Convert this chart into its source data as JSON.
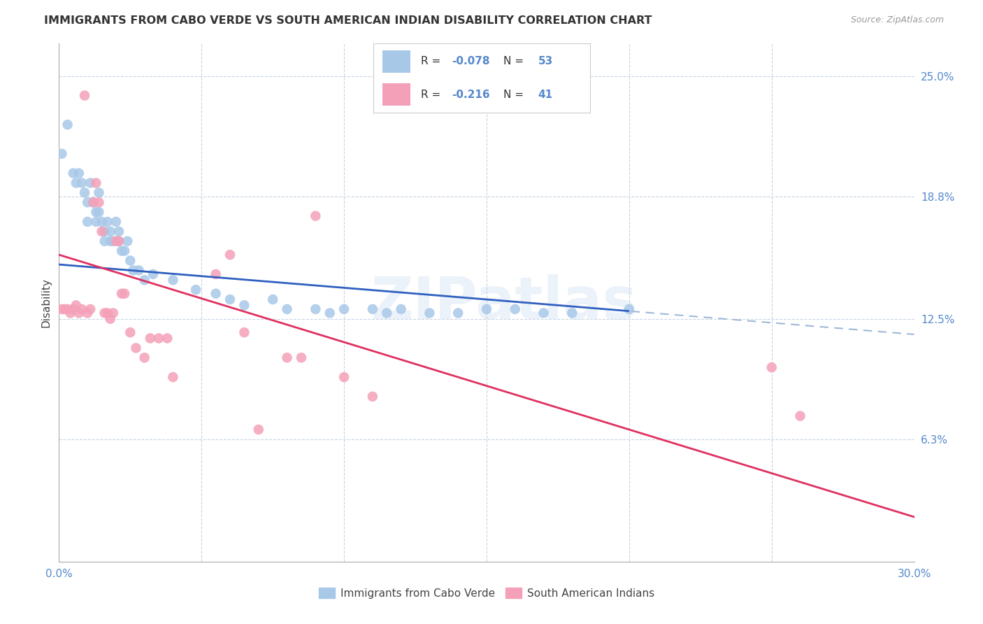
{
  "title": "IMMIGRANTS FROM CABO VERDE VS SOUTH AMERICAN INDIAN DISABILITY CORRELATION CHART",
  "source": "Source: ZipAtlas.com",
  "ylabel": "Disability",
  "x_min": 0.0,
  "x_max": 0.3,
  "y_min": 0.0,
  "y_max": 0.2667,
  "y_tick_vals": [
    0.063,
    0.125,
    0.188,
    0.25
  ],
  "y_tick_labels": [
    "6.3%",
    "12.5%",
    "18.8%",
    "25.0%"
  ],
  "color_blue": "#a8c8e8",
  "color_pink": "#f4a0b8",
  "trendline_blue_color": "#3060c0",
  "trendline_pink_color": "#e03060",
  "trendline_blue_dashed_color": "#a0b8d8",
  "watermark": "ZIPatlas",
  "cabo_verde_x": [
    0.001,
    0.003,
    0.005,
    0.006,
    0.007,
    0.008,
    0.009,
    0.01,
    0.01,
    0.011,
    0.012,
    0.013,
    0.013,
    0.014,
    0.014,
    0.015,
    0.016,
    0.016,
    0.017,
    0.018,
    0.018,
    0.019,
    0.02,
    0.021,
    0.021,
    0.022,
    0.023,
    0.024,
    0.025,
    0.026,
    0.028,
    0.03,
    0.033,
    0.04,
    0.048,
    0.055,
    0.06,
    0.065,
    0.075,
    0.08,
    0.09,
    0.095,
    0.1,
    0.11,
    0.115,
    0.12,
    0.13,
    0.14,
    0.15,
    0.16,
    0.17,
    0.18,
    0.2
  ],
  "cabo_verde_y": [
    0.21,
    0.225,
    0.2,
    0.195,
    0.2,
    0.195,
    0.19,
    0.185,
    0.175,
    0.195,
    0.185,
    0.175,
    0.18,
    0.19,
    0.18,
    0.175,
    0.165,
    0.17,
    0.175,
    0.165,
    0.17,
    0.165,
    0.175,
    0.17,
    0.165,
    0.16,
    0.16,
    0.165,
    0.155,
    0.15,
    0.15,
    0.145,
    0.148,
    0.145,
    0.14,
    0.138,
    0.135,
    0.132,
    0.135,
    0.13,
    0.13,
    0.128,
    0.13,
    0.13,
    0.128,
    0.13,
    0.128,
    0.128,
    0.13,
    0.13,
    0.128,
    0.128,
    0.13
  ],
  "south_american_x": [
    0.001,
    0.002,
    0.003,
    0.004,
    0.005,
    0.006,
    0.007,
    0.008,
    0.009,
    0.01,
    0.011,
    0.012,
    0.013,
    0.014,
    0.015,
    0.016,
    0.017,
    0.018,
    0.019,
    0.02,
    0.021,
    0.022,
    0.023,
    0.025,
    0.027,
    0.03,
    0.032,
    0.035,
    0.038,
    0.04,
    0.055,
    0.06,
    0.065,
    0.07,
    0.08,
    0.085,
    0.09,
    0.1,
    0.11,
    0.25,
    0.26
  ],
  "south_american_y": [
    0.13,
    0.13,
    0.13,
    0.128,
    0.13,
    0.132,
    0.128,
    0.13,
    0.24,
    0.128,
    0.13,
    0.185,
    0.195,
    0.185,
    0.17,
    0.128,
    0.128,
    0.125,
    0.128,
    0.165,
    0.165,
    0.138,
    0.138,
    0.118,
    0.11,
    0.105,
    0.115,
    0.115,
    0.115,
    0.095,
    0.148,
    0.158,
    0.118,
    0.068,
    0.105,
    0.105,
    0.178,
    0.095,
    0.085,
    0.1,
    0.075
  ]
}
